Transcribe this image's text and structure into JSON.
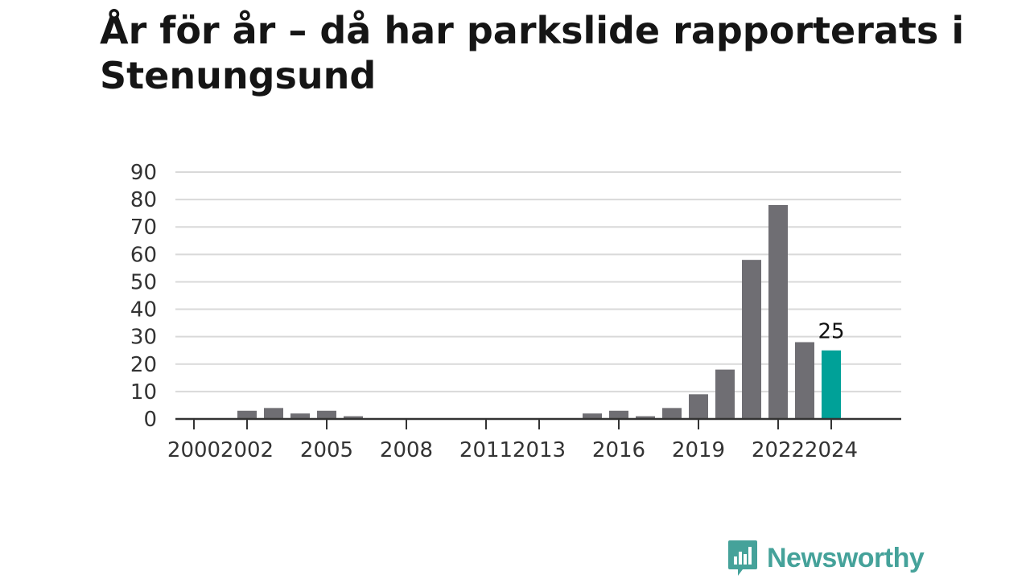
{
  "title": "År för år – då har parkslide rapporterats i Stenungsund",
  "brand": {
    "name": "Newsworthy",
    "icon": "newsworthy-logo-icon"
  },
  "colors": {
    "bar": "#6f6e73",
    "highlight": "#00a198",
    "grid": "#d9d9d9",
    "axis": "#333333",
    "brand": "#45a29a"
  },
  "chart_data": {
    "type": "bar",
    "title": "År för år – då har parkslide rapporterats i Stenungsund",
    "xlabel": "",
    "ylabel": "",
    "ylim": [
      0,
      90
    ],
    "yticks": [
      0,
      10,
      20,
      30,
      40,
      50,
      60,
      70,
      80,
      90
    ],
    "x": [
      2000,
      2001,
      2002,
      2003,
      2004,
      2005,
      2006,
      2007,
      2008,
      2009,
      2010,
      2011,
      2012,
      2013,
      2014,
      2015,
      2016,
      2017,
      2018,
      2019,
      2020,
      2021,
      2022,
      2023,
      2024
    ],
    "values": [
      0,
      0,
      3,
      4,
      2,
      3,
      1,
      0,
      0,
      0,
      0,
      0,
      0,
      0,
      0,
      2,
      3,
      1,
      4,
      9,
      18,
      58,
      78,
      28,
      25
    ],
    "xtick_labels": [
      "2000",
      "2002",
      "2005",
      "2008",
      "2011",
      "2013",
      "2016",
      "2019",
      "2022",
      "2024"
    ],
    "highlight": {
      "x": 2024,
      "label": "25"
    },
    "grid": true,
    "legend": "none"
  }
}
